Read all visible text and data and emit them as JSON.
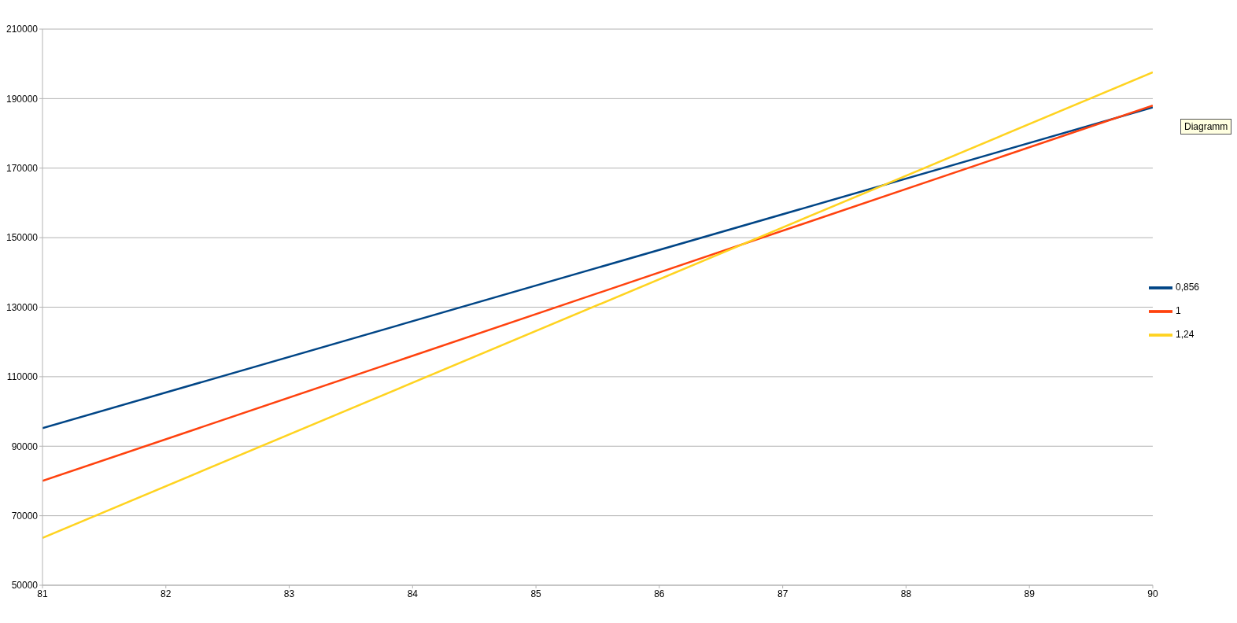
{
  "chart_data": {
    "type": "line",
    "x": [
      81,
      90
    ],
    "series": [
      {
        "name": "0,856",
        "color": "#004586",
        "values": [
          95200,
          187500
        ]
      },
      {
        "name": "1",
        "color": "#ff420e",
        "values": [
          80000,
          188000
        ]
      },
      {
        "name": "1,24",
        "color": "#ffd320",
        "values": [
          63600,
          197600
        ]
      }
    ],
    "xlim": [
      81,
      90
    ],
    "xticks": [
      81,
      82,
      83,
      84,
      85,
      86,
      87,
      88,
      89,
      90
    ],
    "ylim": [
      50000,
      210000
    ],
    "yticks": [
      50000,
      70000,
      90000,
      110000,
      130000,
      150000,
      170000,
      190000,
      210000
    ],
    "grid": "y",
    "legend": "right",
    "marker": "none",
    "line_style": "solid",
    "annotations": [
      "Diagramm"
    ]
  }
}
